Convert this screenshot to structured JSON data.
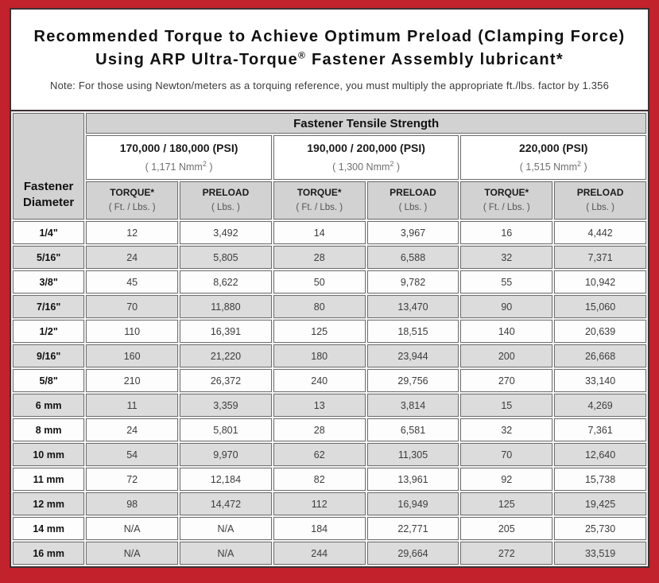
{
  "page": {
    "title_line1": "Recommended Torque to Achieve Optimum Preload (Clamping Force)",
    "title_line2_pre": "Using ARP Ultra-Torque",
    "title_line2_sup": "®",
    "title_line2_post": " Fastener Assembly lubricant*",
    "note": "Note: For those using Newton/meters as a torquing reference, you must multiply the appropriate ft./lbs. factor by 1.356"
  },
  "table": {
    "banner": "Fastener Tensile Strength",
    "corner_line1": "Fastener",
    "corner_line2": "Diameter",
    "groups": [
      {
        "psi": "170,000 / 180,000 (PSI)",
        "nmm_pre": "( 1,171 Nmm",
        "nmm_sup": "2",
        "nmm_post": " )"
      },
      {
        "psi": "190,000 / 200,000 (PSI)",
        "nmm_pre": "( 1,300 Nmm",
        "nmm_sup": "2",
        "nmm_post": " )"
      },
      {
        "psi": "220,000 (PSI)",
        "nmm_pre": "( 1,515 Nmm",
        "nmm_sup": "2",
        "nmm_post": " )"
      }
    ],
    "sub": {
      "torque_label": "TORQUE*",
      "torque_unit": "( Ft. / Lbs. )",
      "preload_label": "PRELOAD",
      "preload_unit": "( Lbs. )"
    },
    "rows": [
      {
        "diameter": "1/4\"",
        "values": [
          "12",
          "3,492",
          "14",
          "3,967",
          "16",
          "4,442"
        ]
      },
      {
        "diameter": "5/16\"",
        "values": [
          "24",
          "5,805",
          "28",
          "6,588",
          "32",
          "7,371"
        ]
      },
      {
        "diameter": "3/8\"",
        "values": [
          "45",
          "8,622",
          "50",
          "9,782",
          "55",
          "10,942"
        ]
      },
      {
        "diameter": "7/16\"",
        "values": [
          "70",
          "11,880",
          "80",
          "13,470",
          "90",
          "15,060"
        ]
      },
      {
        "diameter": "1/2\"",
        "values": [
          "110",
          "16,391",
          "125",
          "18,515",
          "140",
          "20,639"
        ]
      },
      {
        "diameter": "9/16\"",
        "values": [
          "160",
          "21,220",
          "180",
          "23,944",
          "200",
          "26,668"
        ]
      },
      {
        "diameter": "5/8\"",
        "values": [
          "210",
          "26,372",
          "240",
          "29,756",
          "270",
          "33,140"
        ]
      },
      {
        "diameter": "6 mm",
        "values": [
          "11",
          "3,359",
          "13",
          "3,814",
          "15",
          "4,269"
        ]
      },
      {
        "diameter": "8 mm",
        "values": [
          "24",
          "5,801",
          "28",
          "6,581",
          "32",
          "7,361"
        ]
      },
      {
        "diameter": "10 mm",
        "values": [
          "54",
          "9,970",
          "62",
          "11,305",
          "70",
          "12,640"
        ]
      },
      {
        "diameter": "11 mm",
        "values": [
          "72",
          "12,184",
          "82",
          "13,961",
          "92",
          "15,738"
        ]
      },
      {
        "diameter": "12 mm",
        "values": [
          "98",
          "14,472",
          "112",
          "16,949",
          "125",
          "19,425"
        ]
      },
      {
        "diameter": "14 mm",
        "values": [
          "N/A",
          "N/A",
          "184",
          "22,771",
          "205",
          "25,730"
        ]
      },
      {
        "diameter": "16 mm",
        "values": [
          "N/A",
          "N/A",
          "244",
          "29,664",
          "272",
          "33,519"
        ]
      }
    ]
  },
  "colors": {
    "frame_red": "#c2222b",
    "header_gray": "#d2d2d2",
    "row_alt_gray": "#dcdcdc",
    "border_dark": "#3c3134",
    "cell_border": "#6e6e6e"
  }
}
